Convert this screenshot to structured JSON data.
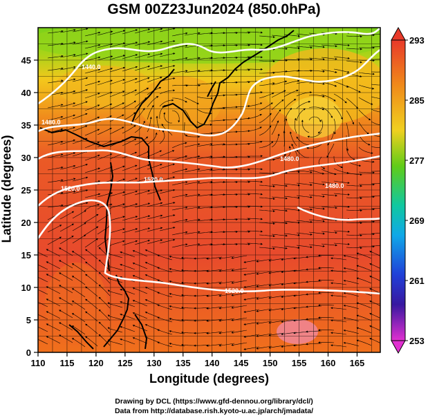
{
  "title": "GSM 00Z23Jun2024 (850.0hPa)",
  "x_axis_label": "Longitude (degrees)",
  "y_axis_label": "Latitude  (degrees)",
  "credit_drawing": "Drawing by DCL (https://www.gfd-dennou.org/library/dcl/)",
  "credit_data": "Data from http://database.rish.kyoto-u.ac.jp/arch/jmadata/",
  "x_ticks": [
    "110",
    "115",
    "120",
    "125",
    "130",
    "135",
    "140",
    "145",
    "150",
    "155",
    "160",
    "165"
  ],
  "y_ticks": [
    "0",
    "5",
    "10",
    "15",
    "20",
    "25",
    "30",
    "35",
    "40",
    "45"
  ],
  "colorbar_labels": [
    "293",
    "285",
    "277",
    "269",
    "261",
    "253"
  ],
  "contour_labels": [
    "1520.0",
    "1520.0",
    "1520.0",
    "1480.0",
    "1480.0",
    "1480.0",
    "1440.0"
  ],
  "colors": {
    "warm": "#e8452a",
    "orange": "#f07a1a",
    "yellow": "#f0c020",
    "green": "#5ccc14",
    "contour": "#ffffff",
    "coast": "#000000"
  }
}
